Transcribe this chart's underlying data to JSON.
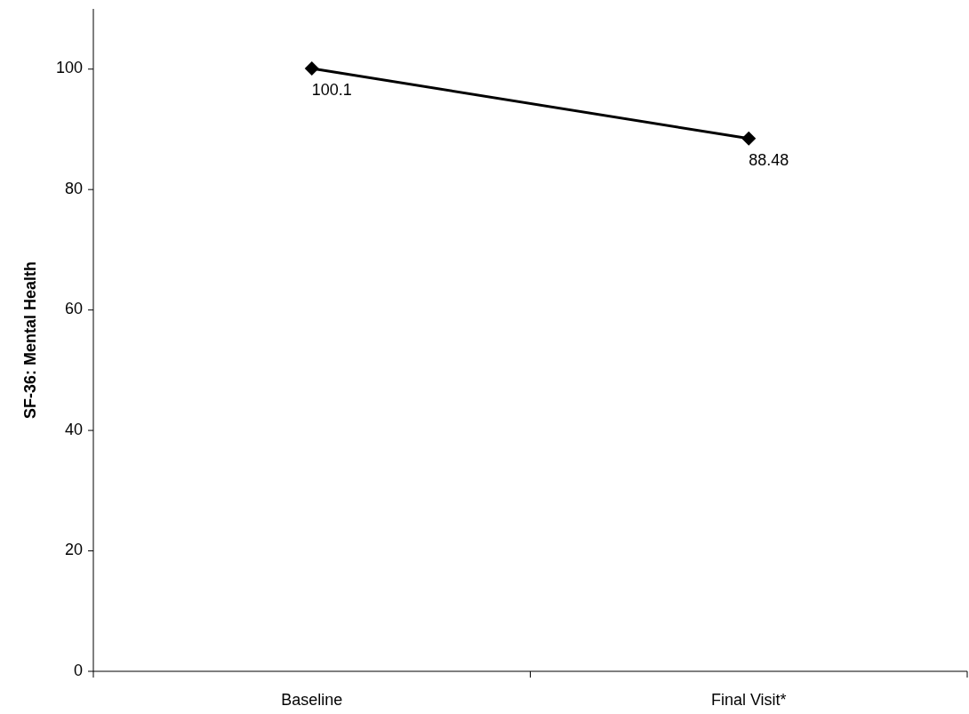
{
  "chart_data": {
    "type": "line",
    "ylabel": "SF-36: Mental Health",
    "categories": [
      "Baseline",
      "Final Visit*"
    ],
    "series": [
      {
        "color": "#000000",
        "values": [
          100.1,
          88.48
        ]
      }
    ],
    "ylim": [
      0,
      110
    ],
    "yticks": [
      0,
      20,
      40,
      60,
      80,
      100
    ],
    "marker": "diamond",
    "data_labels": true
  }
}
